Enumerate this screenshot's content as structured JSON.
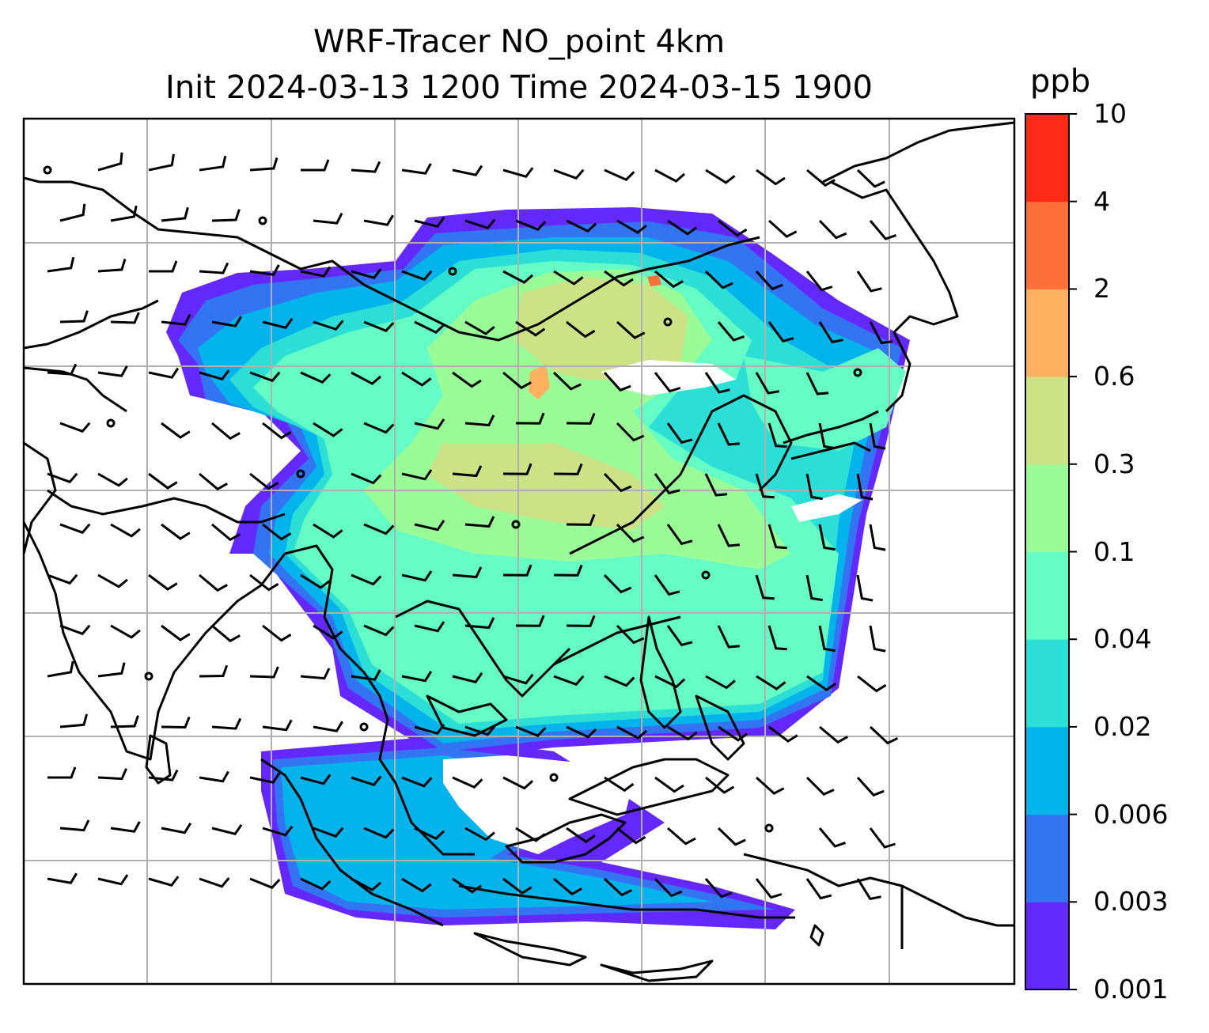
{
  "title": {
    "line1": "WRF-Tracer NO_point 4km",
    "line2": "Init 2024-03-13 1200 Time 2024-03-15 1900"
  },
  "colorbar": {
    "unit": "ppb",
    "levels": [
      "0.001",
      "0.003",
      "0.006",
      "0.02",
      "0.04",
      "0.1",
      "0.3",
      "0.6",
      "2",
      "4",
      "10"
    ],
    "colors": [
      "#6528fc",
      "#3374f2",
      "#03b3eb",
      "#2bdfd6",
      "#64fcc4",
      "#9afc96",
      "#cde187",
      "#feb061",
      "#fe7039",
      "#fe2a16"
    ]
  },
  "map": {
    "gridlines": true,
    "wind_barbs": true,
    "coastlines": true,
    "gridline_color": "#b0b0b0"
  }
}
